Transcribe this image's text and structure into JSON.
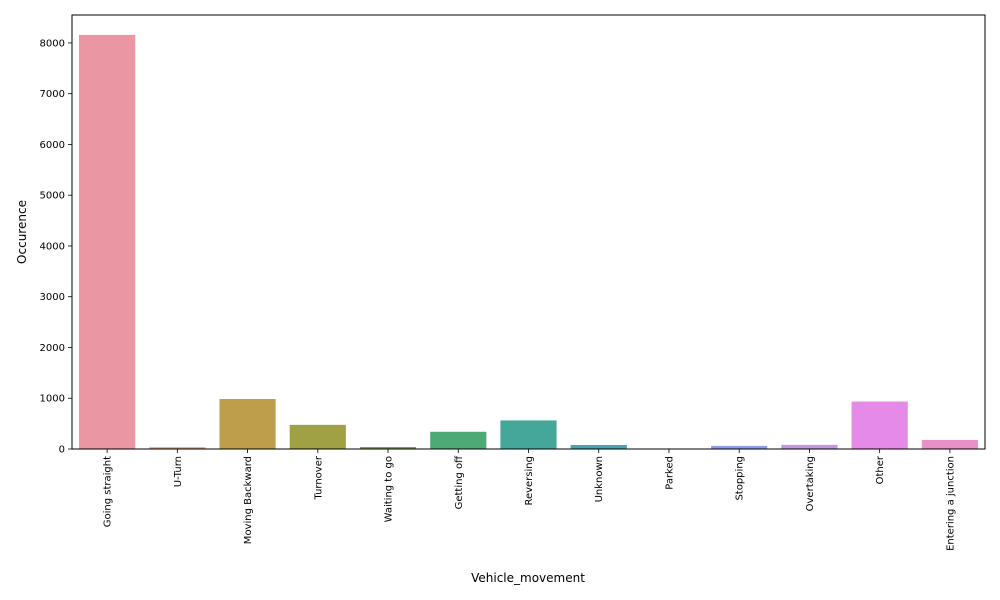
{
  "chart_data": {
    "type": "bar",
    "title": "",
    "xlabel": "Vehicle_movement",
    "ylabel": "Occurence",
    "ylim": [
      0,
      8550
    ],
    "yticks": [
      0,
      1000,
      2000,
      3000,
      4000,
      5000,
      6000,
      7000,
      8000
    ],
    "grid": false,
    "categories": [
      "Going straight",
      "U-Turn",
      "Moving Backward",
      "Turnover",
      "Waiting to go",
      "Getting off",
      "Reversing",
      "Unknown",
      "Parked",
      "Stopping",
      "Overtaking",
      "Other",
      "Entering a junction"
    ],
    "values": [
      8158,
      34,
      985,
      476,
      39,
      339,
      563,
      79,
      1,
      61,
      82,
      935,
      179
    ],
    "colors": [
      "#ea96a3",
      "#d49a72",
      "#bd9e4b",
      "#a0a044",
      "#77a546",
      "#4daa76",
      "#45a69a",
      "#49a3b3",
      "#4f9fd3",
      "#8e9ae8",
      "#c296e2",
      "#e68ae7",
      "#e891c8"
    ]
  }
}
